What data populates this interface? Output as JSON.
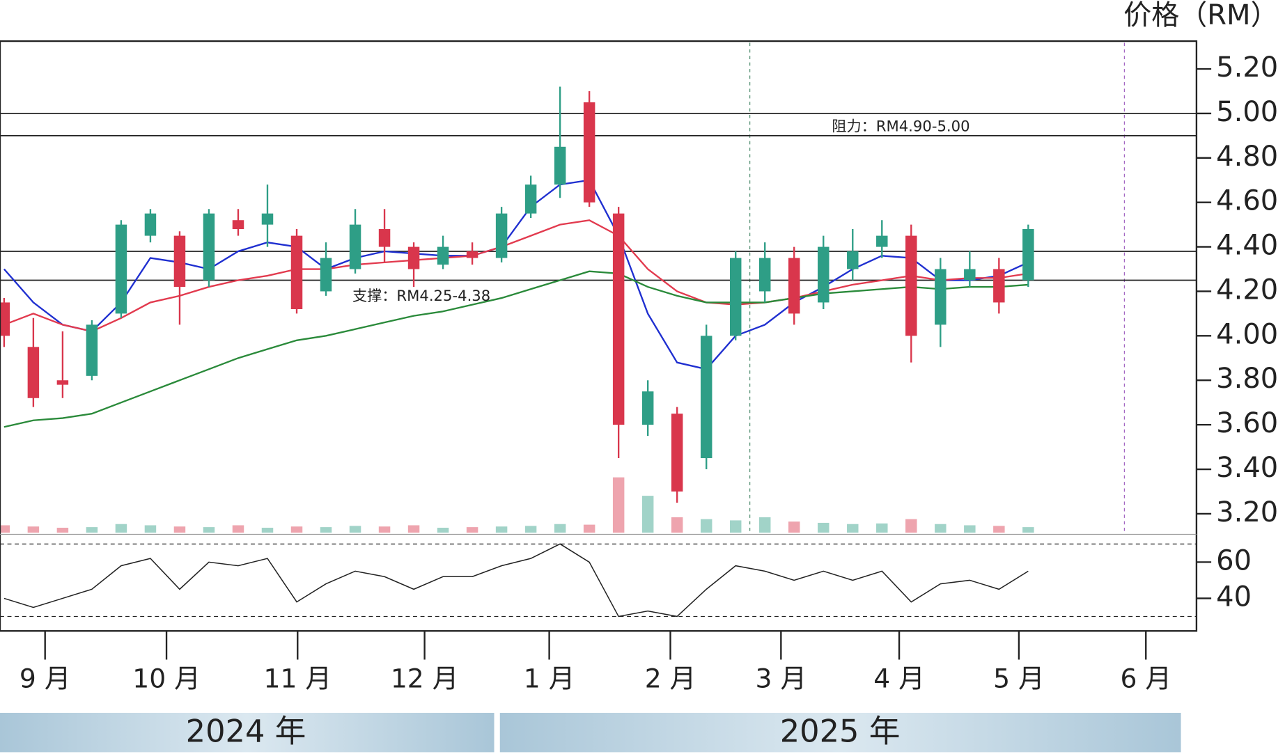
{
  "chart_data": {
    "type": "candlestick",
    "y_label": "价格（RM）",
    "annotations": [
      "阻力：RM4.90-5.00",
      "支撑：RM4.25-4.38"
    ],
    "levels": [
      5.0,
      4.9,
      4.38,
      4.25
    ],
    "years": [
      "2024 年",
      "2025 年"
    ],
    "xlim": [
      -0.14,
      40.75
    ],
    "xticks": [
      {
        "value": 1.4,
        "label": "9 月"
      },
      {
        "value": 5.55,
        "label": "10 月"
      },
      {
        "value": 10.03,
        "label": "11 月"
      },
      {
        "value": 14.37,
        "label": "12 月"
      },
      {
        "value": 18.63,
        "label": "1 月"
      },
      {
        "value": 22.77,
        "label": "2 月"
      },
      {
        "value": 26.55,
        "label": "3 月"
      },
      {
        "value": 30.59,
        "label": "4 月"
      },
      {
        "value": 34.68,
        "label": "5 月"
      },
      {
        "value": 39.02,
        "label": "6 月"
      }
    ],
    "ylim": [
      3.115,
      5.325
    ],
    "yticks": [
      {
        "value": 5.2,
        "label": "5.20"
      },
      {
        "value": 5.0,
        "label": "5.00"
      },
      {
        "value": 4.8,
        "label": "4.80"
      },
      {
        "value": 4.6,
        "label": "4.60"
      },
      {
        "value": 4.4,
        "label": "4.40"
      },
      {
        "value": 4.2,
        "label": "4.20"
      },
      {
        "value": 4.0,
        "label": "4.00"
      },
      {
        "value": 3.8,
        "label": "3.80"
      },
      {
        "value": 3.6,
        "label": "3.60"
      },
      {
        "value": 3.4,
        "label": "3.40"
      },
      {
        "value": 3.2,
        "label": "3.20"
      }
    ],
    "up_color": "#2e9e86",
    "down_color": "#d9364c",
    "open": [
      4.15,
      3.95,
      3.8,
      3.82,
      4.1,
      4.45,
      4.45,
      4.25,
      4.52,
      4.5,
      4.45,
      4.2,
      4.3,
      4.48,
      4.4,
      4.32,
      4.38,
      4.35,
      4.55,
      4.68,
      5.05,
      4.55,
      3.6,
      3.65,
      3.45,
      4.0,
      4.2,
      4.35,
      4.15,
      4.3,
      4.4,
      4.45,
      4.05,
      4.25,
      4.3,
      4.25
    ],
    "high": [
      4.17,
      4.08,
      4.02,
      4.07,
      4.52,
      4.57,
      4.47,
      4.57,
      4.57,
      4.68,
      4.48,
      4.42,
      4.57,
      4.57,
      4.42,
      4.45,
      4.42,
      4.58,
      4.72,
      5.12,
      5.1,
      4.58,
      3.8,
      3.68,
      4.05,
      4.38,
      4.42,
      4.4,
      4.45,
      4.48,
      4.52,
      4.5,
      4.35,
      4.38,
      4.35,
      4.5
    ],
    "low": [
      3.95,
      3.68,
      3.72,
      3.8,
      4.08,
      4.42,
      4.05,
      4.22,
      4.45,
      4.4,
      4.1,
      4.18,
      4.28,
      4.33,
      4.22,
      4.3,
      4.32,
      4.33,
      4.53,
      4.62,
      4.58,
      3.45,
      3.55,
      3.25,
      3.4,
      3.98,
      4.15,
      4.05,
      4.12,
      4.25,
      4.35,
      3.88,
      3.95,
      4.22,
      4.1,
      4.22
    ],
    "close": [
      4.0,
      3.72,
      3.78,
      4.05,
      4.5,
      4.55,
      4.22,
      4.55,
      4.48,
      4.55,
      4.12,
      4.35,
      4.5,
      4.4,
      4.3,
      4.4,
      4.35,
      4.55,
      4.68,
      4.85,
      4.6,
      3.6,
      3.75,
      3.3,
      4.0,
      4.35,
      4.35,
      4.1,
      4.4,
      4.38,
      4.45,
      4.0,
      4.3,
      4.3,
      4.15,
      4.48
    ],
    "ma_lines": [
      {
        "color": "#1f2fd0",
        "values": [
          4.3,
          4.15,
          4.05,
          4.02,
          4.15,
          4.35,
          4.33,
          4.3,
          4.38,
          4.42,
          4.4,
          4.3,
          4.35,
          4.38,
          4.37,
          4.36,
          4.36,
          4.4,
          4.58,
          4.68,
          4.7,
          4.45,
          4.1,
          3.88,
          3.85,
          4.0,
          4.05,
          4.15,
          4.22,
          4.3,
          4.36,
          4.35,
          4.25,
          4.25,
          4.27,
          4.33
        ]
      },
      {
        "color": "#e23a4e",
        "values": [
          4.05,
          4.1,
          4.05,
          4.02,
          4.08,
          4.15,
          4.18,
          4.22,
          4.25,
          4.27,
          4.3,
          4.3,
          4.32,
          4.33,
          4.34,
          4.35,
          4.36,
          4.4,
          4.45,
          4.5,
          4.52,
          4.45,
          4.3,
          4.2,
          4.15,
          4.14,
          4.15,
          4.17,
          4.2,
          4.23,
          4.25,
          4.27,
          4.25,
          4.26,
          4.26,
          4.28
        ]
      },
      {
        "color": "#2a8a3a",
        "values": [
          3.59,
          3.62,
          3.63,
          3.65,
          3.7,
          3.75,
          3.8,
          3.85,
          3.9,
          3.94,
          3.98,
          4.0,
          4.03,
          4.06,
          4.09,
          4.11,
          4.14,
          4.17,
          4.21,
          4.25,
          4.29,
          4.28,
          4.22,
          4.18,
          4.15,
          4.15,
          4.15,
          4.17,
          4.19,
          4.2,
          4.21,
          4.22,
          4.21,
          4.22,
          4.22,
          4.23
        ]
      }
    ],
    "volume": [
      12,
      10,
      8,
      9,
      14,
      12,
      10,
      9,
      12,
      8,
      10,
      9,
      11,
      10,
      12,
      8,
      9,
      10,
      11,
      14,
      13,
      90,
      60,
      25,
      22,
      20,
      25,
      18,
      16,
      14,
      15,
      22,
      14,
      12,
      11,
      9
    ],
    "vlim": [
      0,
      100
    ],
    "rsi": {
      "values": [
        40,
        35,
        40,
        45,
        58,
        62,
        45,
        60,
        58,
        62,
        38,
        48,
        55,
        52,
        45,
        52,
        52,
        58,
        62,
        70,
        60,
        30,
        33,
        30,
        45,
        58,
        55,
        50,
        55,
        50,
        55,
        38,
        48,
        50,
        45,
        55
      ],
      "ylim": [
        22,
        74
      ],
      "yticks": [
        60,
        40
      ],
      "levels": [
        70,
        30
      ]
    }
  }
}
